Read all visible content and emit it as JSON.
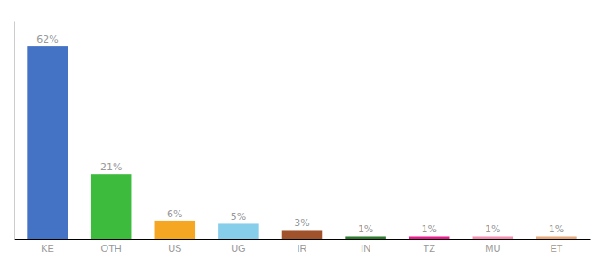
{
  "chart_data": {
    "type": "bar",
    "categories": [
      "KE",
      "OTH",
      "US",
      "UG",
      "IR",
      "IN",
      "TZ",
      "MU",
      "ET"
    ],
    "values": [
      62,
      21,
      6,
      5,
      3,
      1,
      1,
      1,
      1
    ],
    "value_labels": [
      "62%",
      "21%",
      "6%",
      "5%",
      "3%",
      "1%",
      "1%",
      "1%",
      "1%"
    ],
    "colors": [
      "#4472c4",
      "#3dbb3d",
      "#f5a623",
      "#87ceeb",
      "#a0522d",
      "#2d7a2d",
      "#e91e8c",
      "#f48fb1",
      "#e8a87c"
    ],
    "ylim": [
      0,
      70
    ],
    "data_labels": true,
    "tick_labels": "x",
    "grid": false
  }
}
